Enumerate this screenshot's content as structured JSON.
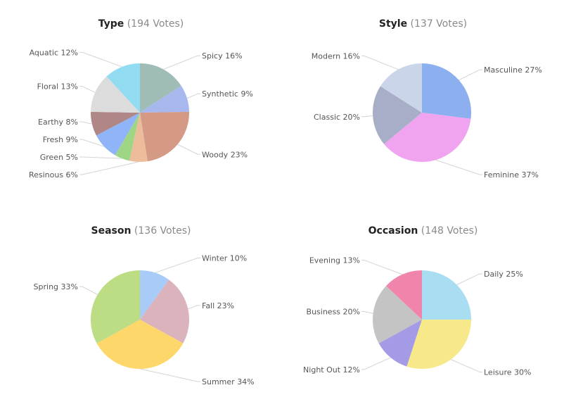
{
  "chart_data": [
    {
      "type": "pie",
      "title": "Type",
      "subtitle": "(194 Votes)",
      "slices": [
        {
          "label": "Spicy",
          "pct": "16%",
          "value": 16,
          "color": "#9fbdb6"
        },
        {
          "label": "Synthetic",
          "pct": "9%",
          "value": 9,
          "color": "#a8b8ef"
        },
        {
          "label": "Woody",
          "pct": "23%",
          "value": 23,
          "color": "#d59a85"
        },
        {
          "label": "Resinous",
          "pct": "6%",
          "value": 6,
          "color": "#ecbc9b"
        },
        {
          "label": "Green",
          "pct": "5%",
          "value": 5,
          "color": "#9fd685"
        },
        {
          "label": "Fresh",
          "pct": "9%",
          "value": 9,
          "color": "#8fb4f8"
        },
        {
          "label": "Earthy",
          "pct": "8%",
          "value": 8,
          "color": "#b08787"
        },
        {
          "label": "Floral",
          "pct": "13%",
          "value": 13,
          "color": "#dcdcdc"
        },
        {
          "label": "Aquatic",
          "pct": "12%",
          "value": 12,
          "color": "#92dcf2"
        }
      ]
    },
    {
      "type": "pie",
      "title": "Style",
      "subtitle": "(137 Votes)",
      "slices": [
        {
          "label": "Masculine",
          "pct": "27%",
          "value": 27,
          "color": "#8bafef"
        },
        {
          "label": "Feminine",
          "pct": "37%",
          "value": 37,
          "color": "#f0a4f0"
        },
        {
          "label": "Classic",
          "pct": "20%",
          "value": 20,
          "color": "#a8aec8"
        },
        {
          "label": "Modern",
          "pct": "16%",
          "value": 16,
          "color": "#cbd5ea"
        }
      ]
    },
    {
      "type": "pie",
      "title": "Season",
      "subtitle": "(136 Votes)",
      "slices": [
        {
          "label": "Winter",
          "pct": "10%",
          "value": 10,
          "color": "#a8cbf7"
        },
        {
          "label": "Fall",
          "pct": "23%",
          "value": 23,
          "color": "#dbb3bd"
        },
        {
          "label": "Summer",
          "pct": "34%",
          "value": 34,
          "color": "#fed76b"
        },
        {
          "label": "Spring",
          "pct": "33%",
          "value": 33,
          "color": "#bddd84"
        }
      ]
    },
    {
      "type": "pie",
      "title": "Occasion",
      "subtitle": "(148 Votes)",
      "slices": [
        {
          "label": "Daily",
          "pct": "25%",
          "value": 25,
          "color": "#a9def2"
        },
        {
          "label": "Leisure",
          "pct": "30%",
          "value": 30,
          "color": "#f7e98a"
        },
        {
          "label": "Night Out",
          "pct": "12%",
          "value": 12,
          "color": "#a39be6"
        },
        {
          "label": "Business",
          "pct": "20%",
          "value": 20,
          "color": "#c4c4c4"
        },
        {
          "label": "Evening",
          "pct": "13%",
          "value": 13,
          "color": "#f184ad"
        }
      ]
    }
  ]
}
